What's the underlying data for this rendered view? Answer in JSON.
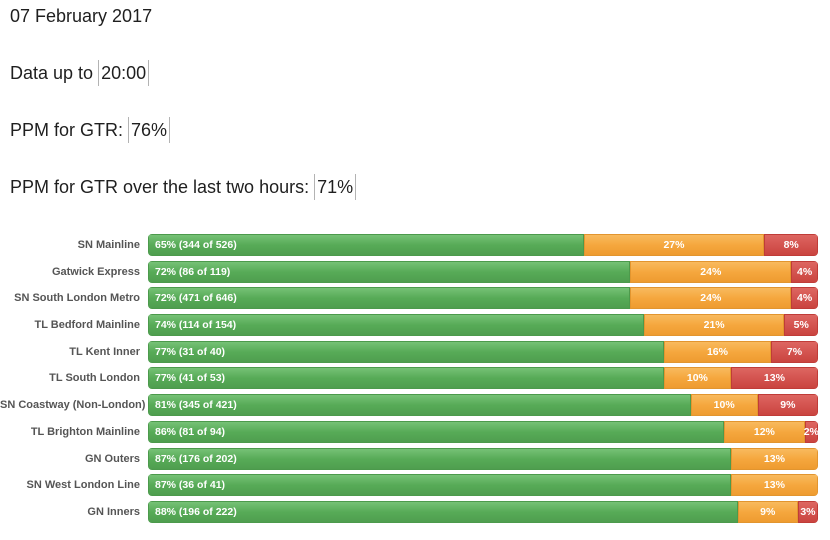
{
  "header": {
    "date": "07 February 2017",
    "data_up_to": {
      "label": "Data up to",
      "value": "20:00"
    },
    "ppm": {
      "label": "PPM for GTR:",
      "value": "76%"
    },
    "ppm_two_hours": {
      "label": "PPM for GTR over the last two hours:",
      "value": "71%"
    }
  },
  "colors": {
    "green": "#57ab57",
    "orange": "#f5a73e",
    "red": "#d45450"
  },
  "chart_data": {
    "type": "bar",
    "orientation": "horizontal",
    "stacked": true,
    "unit": "percent",
    "xlim": [
      0,
      100
    ],
    "legend_position": "none",
    "grid": false,
    "categories": [
      "SN Mainline",
      "Gatwick Express",
      "SN South London Metro",
      "TL Bedford Mainline",
      "TL Kent Inner",
      "TL South London",
      "SN Coastway (Non-London)",
      "TL Brighton Mainline",
      "GN Outers",
      "SN West London Line",
      "GN Inners"
    ],
    "series": [
      {
        "name": "green",
        "values": [
          65,
          72,
          72,
          74,
          77,
          77,
          81,
          86,
          87,
          87,
          88
        ]
      },
      {
        "name": "orange",
        "values": [
          27,
          24,
          24,
          21,
          16,
          10,
          10,
          12,
          13,
          13,
          9
        ]
      },
      {
        "name": "red",
        "values": [
          8,
          4,
          4,
          5,
          7,
          13,
          9,
          2,
          0,
          0,
          3
        ]
      }
    ],
    "rows": [
      {
        "category": "SN Mainline",
        "segments": [
          {
            "type": "green",
            "pct": 65,
            "label": "65% (344 of 526)"
          },
          {
            "type": "orange",
            "pct": 27,
            "label": "27%"
          },
          {
            "type": "red",
            "pct": 8,
            "label": "8%"
          }
        ]
      },
      {
        "category": "Gatwick Express",
        "segments": [
          {
            "type": "green",
            "pct": 72,
            "label": "72% (86 of 119)"
          },
          {
            "type": "orange",
            "pct": 24,
            "label": "24%"
          },
          {
            "type": "red",
            "pct": 4,
            "label": "4%"
          }
        ]
      },
      {
        "category": "SN South London Metro",
        "segments": [
          {
            "type": "green",
            "pct": 72,
            "label": "72% (471 of 646)"
          },
          {
            "type": "orange",
            "pct": 24,
            "label": "24%"
          },
          {
            "type": "red",
            "pct": 4,
            "label": "4%"
          }
        ]
      },
      {
        "category": "TL Bedford Mainline",
        "segments": [
          {
            "type": "green",
            "pct": 74,
            "label": "74% (114 of 154)"
          },
          {
            "type": "orange",
            "pct": 21,
            "label": "21%"
          },
          {
            "type": "red",
            "pct": 5,
            "label": "5%"
          }
        ]
      },
      {
        "category": "TL Kent Inner",
        "segments": [
          {
            "type": "green",
            "pct": 77,
            "label": "77% (31 of 40)"
          },
          {
            "type": "orange",
            "pct": 16,
            "label": "16%"
          },
          {
            "type": "red",
            "pct": 7,
            "label": "7%"
          }
        ]
      },
      {
        "category": "TL South London",
        "segments": [
          {
            "type": "green",
            "pct": 77,
            "label": "77% (41 of 53)"
          },
          {
            "type": "orange",
            "pct": 10,
            "label": "10%"
          },
          {
            "type": "red",
            "pct": 13,
            "label": "13%"
          }
        ]
      },
      {
        "category": "SN Coastway (Non-London)",
        "segments": [
          {
            "type": "green",
            "pct": 81,
            "label": "81% (345 of 421)"
          },
          {
            "type": "orange",
            "pct": 10,
            "label": "10%"
          },
          {
            "type": "red",
            "pct": 9,
            "label": "9%"
          }
        ]
      },
      {
        "category": "TL Brighton Mainline",
        "segments": [
          {
            "type": "green",
            "pct": 86,
            "label": "86% (81 of 94)"
          },
          {
            "type": "orange",
            "pct": 12,
            "label": "12%"
          },
          {
            "type": "red",
            "pct": 2,
            "label": "2%"
          }
        ]
      },
      {
        "category": "GN Outers",
        "segments": [
          {
            "type": "green",
            "pct": 87,
            "label": "87% (176 of 202)"
          },
          {
            "type": "orange",
            "pct": 13,
            "label": "13%"
          },
          {
            "type": "red",
            "pct": 0,
            "label": ""
          }
        ]
      },
      {
        "category": "SN West London Line",
        "segments": [
          {
            "type": "green",
            "pct": 87,
            "label": "87% (36 of 41)"
          },
          {
            "type": "orange",
            "pct": 13,
            "label": "13%"
          },
          {
            "type": "red",
            "pct": 0,
            "label": ""
          }
        ]
      },
      {
        "category": "GN Inners",
        "segments": [
          {
            "type": "green",
            "pct": 88,
            "label": "88% (196 of 222)"
          },
          {
            "type": "orange",
            "pct": 9,
            "label": "9%"
          },
          {
            "type": "red",
            "pct": 3,
            "label": "3%"
          }
        ]
      }
    ]
  }
}
